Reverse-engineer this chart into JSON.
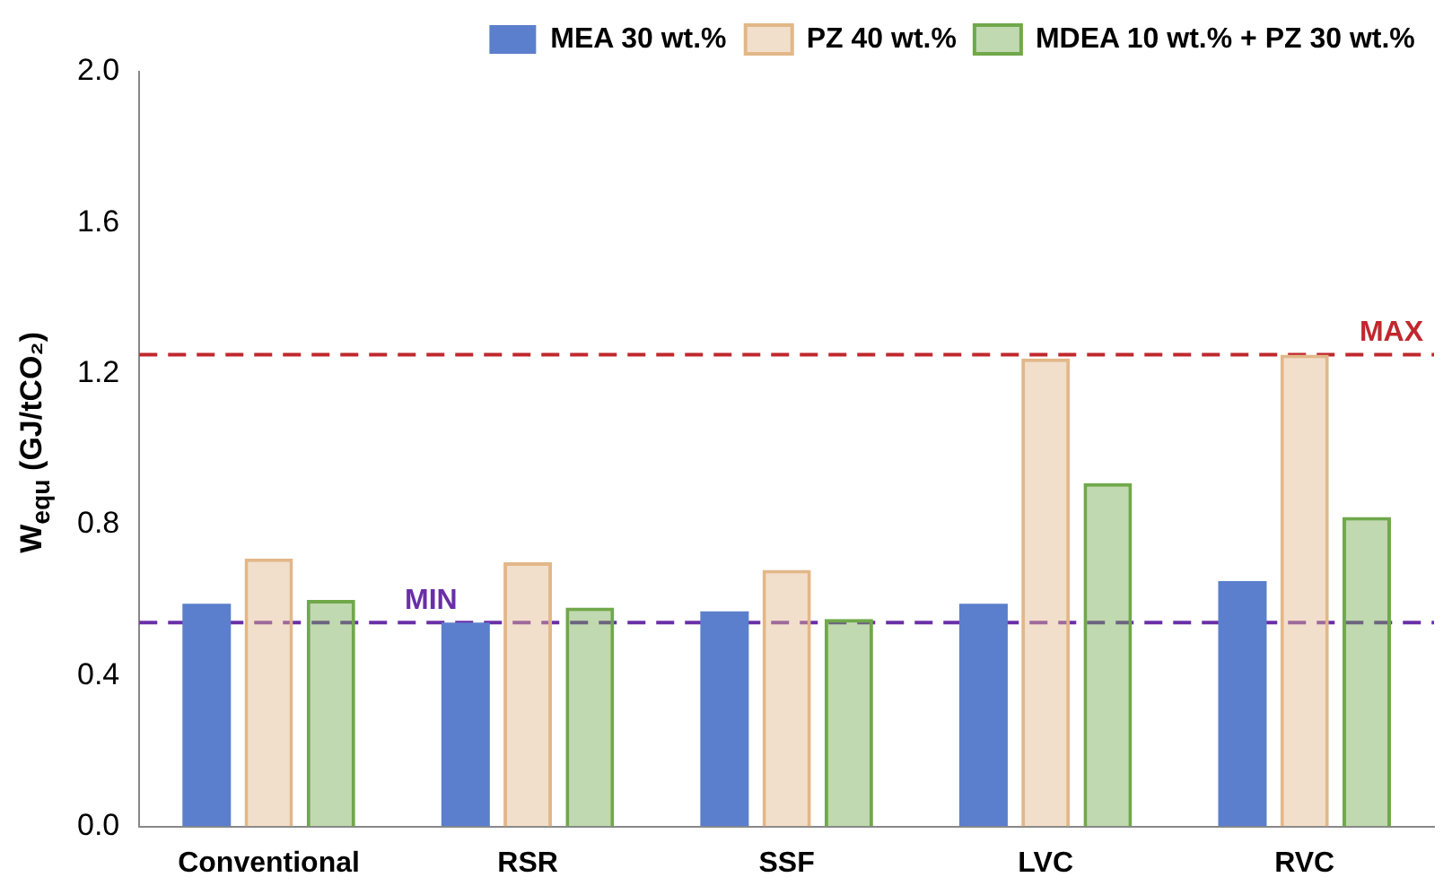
{
  "chart_data": {
    "type": "bar",
    "ylabel": "W$_{equ}$ (GJ/tCO₂)",
    "categories": [
      "Conventional",
      "RSR",
      "SSF",
      "LVC",
      "RVC"
    ],
    "series": [
      {
        "name": "MEA 30 wt.%",
        "color": "#5b7fcc",
        "values": [
          0.59,
          0.54,
          0.57,
          0.59,
          0.65
        ]
      },
      {
        "name": "PZ 40 wt.%",
        "color": "#e2b789",
        "values": [
          0.71,
          0.7,
          0.68,
          1.24,
          1.25
        ]
      },
      {
        "name": "MDEA 10 wt.% + PZ 30 wt.%",
        "color": "#70a84a",
        "values": [
          0.6,
          0.58,
          0.55,
          0.91,
          0.82
        ]
      }
    ],
    "ylim": [
      0,
      2
    ],
    "yticks": [
      {
        "value": 0,
        "label": "0.0"
      },
      {
        "value": 0.4,
        "label": "0.4"
      },
      {
        "value": 0.8,
        "label": "0.8"
      },
      {
        "value": 1.2,
        "label": "1.2"
      },
      {
        "value": 1.6,
        "label": "1.6"
      },
      {
        "value": 2,
        "label": "2.0"
      }
    ],
    "ref_lines": [
      {
        "axis": "y",
        "value": 1.25,
        "label": "MAX",
        "color": "#c0282d",
        "line_style": "dashed"
      },
      {
        "axis": "y",
        "value": 0.54,
        "label": "MIN",
        "color": "#6a2fa8",
        "line_style": "dashed"
      }
    ],
    "grid": false,
    "legend": "top"
  }
}
